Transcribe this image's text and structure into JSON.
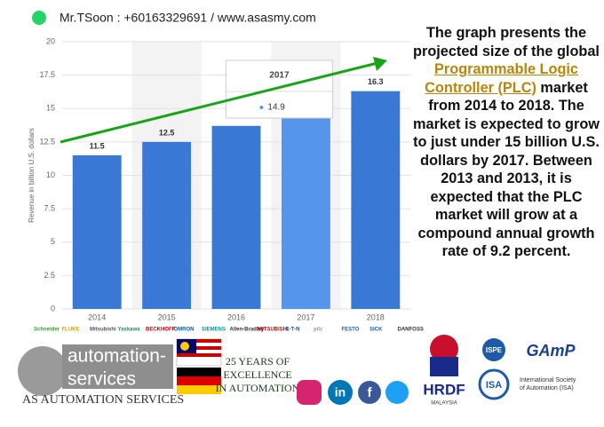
{
  "header": {
    "contact": "Mr.TSoon : +60163329691 / www.asasmy.com"
  },
  "chart_data": {
    "type": "bar",
    "y_label": "Revenue in billion U.S. dollars",
    "categories": [
      "2014",
      "2015",
      "2016",
      "2017",
      "2018"
    ],
    "values": [
      11.5,
      12.5,
      13.7,
      14.9,
      16.3
    ],
    "colors": [
      "#3a78d6",
      "#3a78d6",
      "#3a78d6",
      "#5596ec",
      "#3a78d6"
    ],
    "data_labels": [
      true,
      true,
      false,
      false,
      true
    ],
    "tooltip_index": 3,
    "ylim": [
      0,
      20
    ],
    "yticks": [
      0,
      2.5,
      5,
      7.5,
      10,
      12.5,
      15,
      17.5,
      20
    ],
    "grid": true
  },
  "description": {
    "before": "The graph presents the projected size of the global",
    "link": "Programmable Logic Controller (PLC)",
    "after": "market from 2014 to 2018. The market is expected to grow to just under 15 billion U.S. dollars by 2017. Between 2013 and 2013, it is expected that the PLC market will grow at a compound annual growth rate of 9.2 percent."
  },
  "brands": [
    "Schneider",
    "FLUKE",
    "Mitsubishi",
    "Yaskawa",
    "BECKHOFF",
    "OMRON",
    "SIEMENS",
    "Allen-Bradley",
    "MITSUBISHI",
    "E·T·N",
    "pilz",
    "FESTO",
    "SICK",
    "DANFOSS"
  ],
  "company": {
    "line1": "automation-",
    "line2": "services",
    "name": "AS AUTOMATION SERVICES",
    "motto": [
      "25 YEARS OF",
      "EXCELLENCE",
      "IN AUTOMATION"
    ]
  },
  "social": [
    "in",
    "f"
  ],
  "partners": {
    "hrdf": "HRDF",
    "hrdf_sub": "MALAYSIA",
    "ispe": "ISPE",
    "gamp": "GAmP",
    "isa": "ISA",
    "isa_name": [
      "International Society",
      "of Automation (ISA)"
    ]
  }
}
